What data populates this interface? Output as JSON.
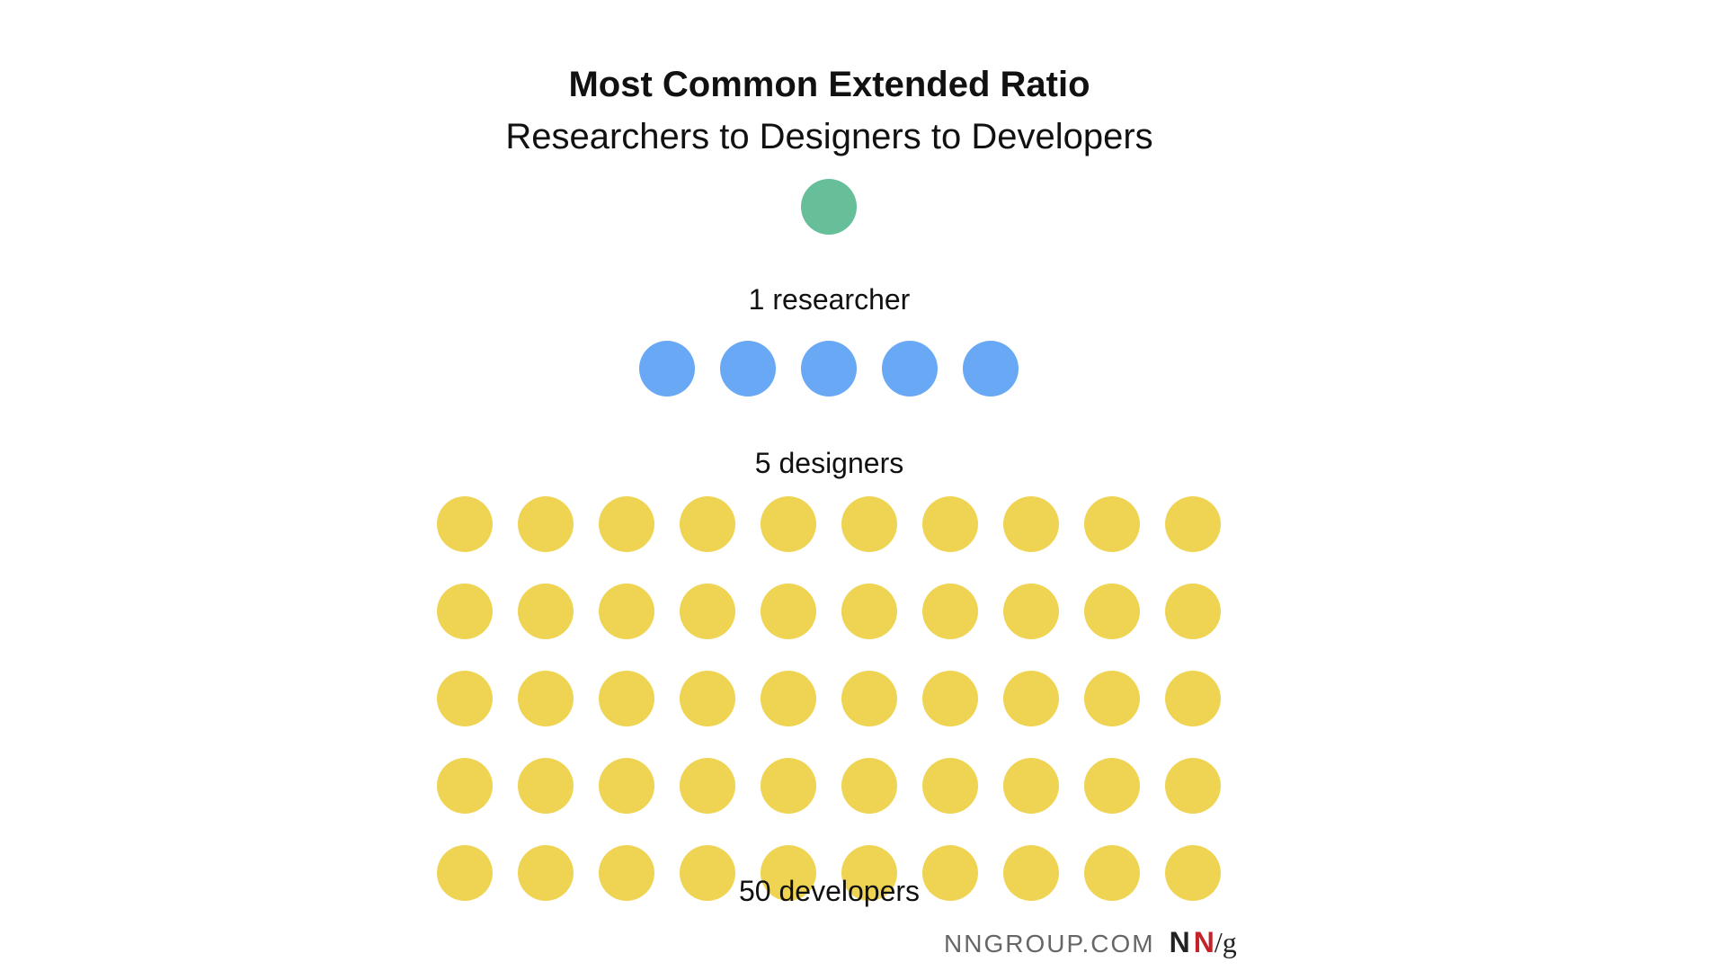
{
  "title": "Most Common Extended Ratio",
  "subtitle": "Researchers to Designers to Developers",
  "groups": [
    {
      "label": "1 researcher",
      "count": 1,
      "color": "#66bf99"
    },
    {
      "label": "5 designers",
      "count": 5,
      "color": "#68a8f5"
    },
    {
      "label": "50 developers",
      "count": 50,
      "color": "#efd454"
    }
  ],
  "footer": {
    "site": "NNGROUP.COM",
    "logo": {
      "n1": "N",
      "n2": "N",
      "slash_g": "/g"
    }
  }
}
